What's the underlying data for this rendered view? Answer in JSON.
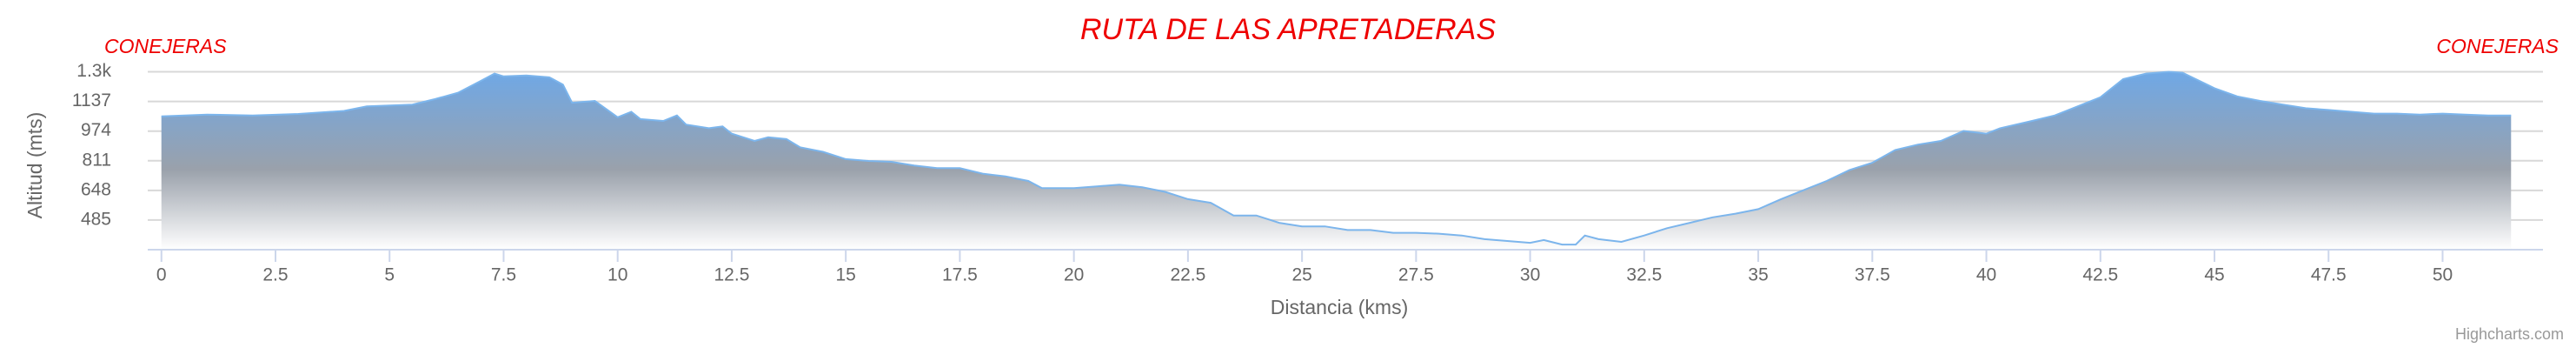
{
  "chart_data": {
    "type": "area",
    "title": "RUTA DE LAS APRETADERAS",
    "annotations": [
      "CONEJERAS",
      "CONEJERAS"
    ],
    "x_label": "Distancia (kms)",
    "y_label": "Altitud (mts)",
    "credits": "Highcharts.com",
    "x": [
      0,
      1,
      2,
      3,
      4,
      4.5,
      5,
      5.5,
      6,
      6.5,
      7,
      7.3,
      7.5,
      8,
      8.5,
      8.8,
      9,
      9.5,
      10,
      10.3,
      10.5,
      11,
      11.3,
      11.5,
      12,
      12.3,
      12.5,
      13,
      13.3,
      13.7,
      14,
      14.5,
      15,
      15.5,
      16,
      16.5,
      17,
      17.5,
      18,
      18.5,
      19,
      19.3,
      20,
      20.5,
      21,
      21.5,
      22,
      22.5,
      23,
      23.5,
      24,
      24.5,
      25,
      25.5,
      26,
      26.5,
      27,
      27.5,
      28,
      28.5,
      29,
      29.5,
      30,
      30.3,
      30.7,
      31,
      31.2,
      31.5,
      32,
      32.5,
      33,
      33.5,
      34,
      34.5,
      35,
      35.5,
      36,
      36.5,
      37,
      37.5,
      38,
      38.5,
      39,
      39.5,
      40,
      40.3,
      41,
      41.5,
      42,
      42.5,
      43,
      43.5,
      44,
      44.3,
      45,
      45.5,
      46,
      46.5,
      47,
      47.5,
      48,
      48.5,
      49,
      49.5,
      50,
      50.5,
      51,
      51.5
    ],
    "series": [
      {
        "name": "Altitud",
        "color": "#7cb5ec",
        "values": [
          1055,
          1065,
          1060,
          1068,
          1085,
          1110,
          1115,
          1120,
          1150,
          1185,
          1250,
          1290,
          1275,
          1280,
          1270,
          1230,
          1130,
          1140,
          1050,
          1080,
          1040,
          1030,
          1060,
          1010,
          990,
          1000,
          960,
          920,
          940,
          930,
          885,
          860,
          820,
          810,
          805,
          785,
          770,
          770,
          740,
          725,
          700,
          660,
          660,
          670,
          680,
          665,
          640,
          600,
          580,
          510,
          510,
          470,
          450,
          450,
          430,
          430,
          415,
          415,
          410,
          400,
          380,
          370,
          360,
          375,
          350,
          350,
          400,
          380,
          365,
          400,
          440,
          470,
          500,
          520,
          545,
          600,
          650,
          700,
          760,
          800,
          870,
          900,
          920,
          975,
          960,
          990,
          1030,
          1060,
          1110,
          1160,
          1260,
          1290,
          1300,
          1295,
          1210,
          1165,
          1140,
          1120,
          1100,
          1090,
          1080,
          1070,
          1070,
          1065,
          1070,
          1065,
          1060,
          1060
        ]
      }
    ],
    "xlim": [
      -0.3,
      52.2
    ],
    "xticks": [
      0,
      2.5,
      5,
      7.5,
      10,
      12.5,
      15,
      17.5,
      20,
      22.5,
      25,
      27.5,
      30,
      32.5,
      35,
      37.5,
      40,
      42.5,
      45,
      47.5,
      50
    ],
    "ylim": [
      322,
      1360
    ],
    "yticks": [
      485,
      648,
      811,
      974,
      1137,
      {
        "value": 1300,
        "label": "1.3k"
      }
    ],
    "grid": true
  }
}
